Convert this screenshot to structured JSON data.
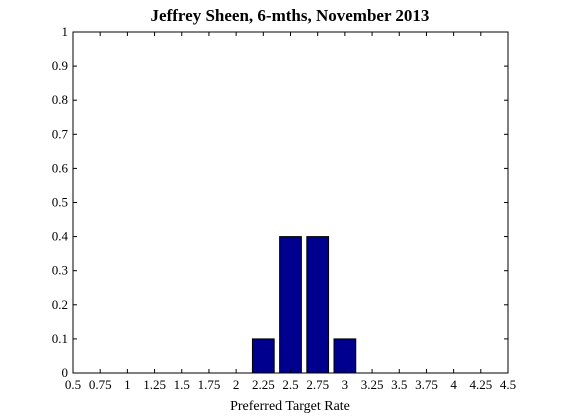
{
  "chart_data": {
    "type": "bar",
    "title": "Jeffrey Sheen, 6-mths, November 2013",
    "xlabel": "Preferred Target Rate",
    "ylabel": "",
    "xlim": [
      0.5,
      4.5
    ],
    "ylim": [
      0,
      1
    ],
    "x_ticks": [
      "0.5",
      "0.75",
      "1",
      "1.25",
      "1.5",
      "1.75",
      "2",
      "2.25",
      "2.5",
      "2.75",
      "3",
      "3.25",
      "3.5",
      "3.75",
      "4",
      "4.25",
      "4.5"
    ],
    "y_ticks": [
      "0",
      "0.1",
      "0.2",
      "0.3",
      "0.4",
      "0.5",
      "0.6",
      "0.7",
      "0.8",
      "0.9",
      "1"
    ],
    "bar_width": 0.2,
    "x": [
      2.25,
      2.5,
      2.75,
      3
    ],
    "values": [
      0.1,
      0.4,
      0.4,
      0.1
    ],
    "bar_color": "#00008f",
    "grid": false
  }
}
